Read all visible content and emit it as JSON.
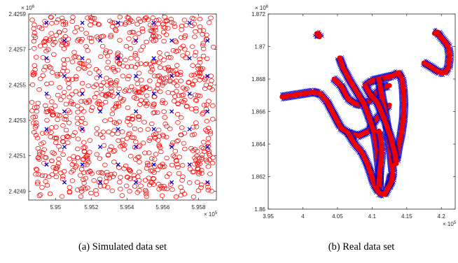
{
  "captions": {
    "a": "(a) Simulated data set",
    "b": "(b) Real data set"
  },
  "colors": {
    "circle": "#ff0000",
    "cross": "#0000cc",
    "track": "#ee0000",
    "axis": "#262626"
  },
  "chart_data": [
    {
      "type": "scatter",
      "title": "",
      "xlabel": "",
      "ylabel": "",
      "xlim": [
        594850,
        595900
      ],
      "ylim": [
        2424850,
        2425900
      ],
      "x_ticks": [
        "5.95",
        "5.952",
        "5.954",
        "5.956",
        "5.958"
      ],
      "x_tick_values": [
        595000,
        595200,
        595400,
        595600,
        595800
      ],
      "x_exponent": "× 10^5",
      "y_ticks": [
        "2.4249",
        "2.4251",
        "2.4253",
        "2.4255",
        "2.4257",
        "2.4259"
      ],
      "y_tick_values": [
        2424900,
        2425100,
        2425300,
        2425500,
        2425700,
        2425900
      ],
      "y_exponent": "× 10^6",
      "grid": false,
      "series": [
        {
          "marker": "circle",
          "color": "#ff0000",
          "count": 950,
          "distribution": "uniform over the whole axes area"
        },
        {
          "marker": "x",
          "color": "#0000cc",
          "points": [
            [
              594950,
              2425850
            ],
            [
              595150,
              2425850
            ],
            [
              595350,
              2425850
            ],
            [
              595550,
              2425850
            ],
            [
              595750,
              2425850
            ],
            [
              595050,
              2425750
            ],
            [
              595250,
              2425750
            ],
            [
              595450,
              2425750
            ],
            [
              595650,
              2425750
            ],
            [
              595850,
              2425750
            ],
            [
              594950,
              2425650
            ],
            [
              595150,
              2425650
            ],
            [
              595350,
              2425650
            ],
            [
              595550,
              2425650
            ],
            [
              595750,
              2425650
            ],
            [
              595050,
              2425550
            ],
            [
              595250,
              2425550
            ],
            [
              595450,
              2425550
            ],
            [
              595650,
              2425550
            ],
            [
              595850,
              2425550
            ],
            [
              594950,
              2425450
            ],
            [
              595150,
              2425450
            ],
            [
              595350,
              2425450
            ],
            [
              595550,
              2425450
            ],
            [
              595750,
              2425450
            ],
            [
              595050,
              2425350
            ],
            [
              595250,
              2425350
            ],
            [
              595450,
              2425350
            ],
            [
              595650,
              2425350
            ],
            [
              595850,
              2425350
            ],
            [
              594950,
              2425250
            ],
            [
              595150,
              2425250
            ],
            [
              595350,
              2425250
            ],
            [
              595550,
              2425250
            ],
            [
              595750,
              2425250
            ],
            [
              595050,
              2425150
            ],
            [
              595250,
              2425150
            ],
            [
              595450,
              2425150
            ],
            [
              595650,
              2425150
            ],
            [
              595850,
              2425150
            ],
            [
              594950,
              2425050
            ],
            [
              595150,
              2425050
            ],
            [
              595350,
              2425050
            ],
            [
              595550,
              2425050
            ],
            [
              595750,
              2425050
            ],
            [
              595050,
              2424950
            ],
            [
              595250,
              2424950
            ],
            [
              595450,
              2424950
            ],
            [
              595650,
              2424950
            ],
            [
              595850,
              2424950
            ]
          ]
        }
      ]
    },
    {
      "type": "scatter",
      "title": "",
      "xlabel": "",
      "ylabel": "",
      "xlim": [
        395000,
        422000
      ],
      "ylim": [
        1860000,
        1872000
      ],
      "x_ticks": [
        "3.95",
        "4",
        "4.05",
        "4.1",
        "4.15",
        "4.2"
      ],
      "x_tick_values": [
        395000,
        400000,
        405000,
        410000,
        415000,
        420000
      ],
      "x_exponent": "× 10^5",
      "y_ticks": [
        "1.86",
        "1.862",
        "1.864",
        "1.866",
        "1.868",
        "1.87",
        "1.872"
      ],
      "y_tick_values": [
        1860000,
        1862000,
        1864000,
        1866000,
        1868000,
        1870000,
        1872000
      ],
      "y_exponent": "× 10^6",
      "grid": false,
      "tracks": [
        [
          [
            397000,
            1866900
          ],
          [
            398500,
            1867000
          ],
          [
            400000,
            1867100
          ],
          [
            401500,
            1867200
          ],
          [
            402500,
            1867100
          ],
          [
            403500,
            1866600
          ],
          [
            404500,
            1865800
          ],
          [
            405500,
            1865000
          ],
          [
            406500,
            1864700
          ],
          [
            408000,
            1864500
          ],
          [
            409500,
            1864800
          ],
          [
            410500,
            1865500
          ],
          [
            411500,
            1866000
          ],
          [
            412500,
            1866400
          ]
        ],
        [
          [
            404500,
            1868000
          ],
          [
            405500,
            1867600
          ],
          [
            406500,
            1866800
          ],
          [
            407500,
            1866500
          ],
          [
            408500,
            1866400
          ],
          [
            409500,
            1866600
          ],
          [
            410500,
            1867100
          ],
          [
            411500,
            1867500
          ],
          [
            412500,
            1867600
          ]
        ],
        [
          [
            405300,
            1869300
          ],
          [
            405800,
            1868700
          ],
          [
            406800,
            1867900
          ],
          [
            407800,
            1867200
          ],
          [
            408800,
            1866500
          ],
          [
            409600,
            1865600
          ],
          [
            410300,
            1864700
          ],
          [
            410700,
            1863700
          ],
          [
            411000,
            1862500
          ],
          [
            411100,
            1861200
          ]
        ],
        [
          [
            406500,
            1864700
          ],
          [
            407500,
            1864000
          ],
          [
            408500,
            1863500
          ],
          [
            409300,
            1862800
          ],
          [
            409800,
            1862200
          ],
          [
            410300,
            1861500
          ],
          [
            411000,
            1861000
          ],
          [
            411800,
            1860900
          ],
          [
            412500,
            1861500
          ],
          [
            412800,
            1862200
          ]
        ],
        [
          [
            409000,
            1867600
          ],
          [
            410000,
            1867900
          ],
          [
            411000,
            1868000
          ],
          [
            412000,
            1868100
          ],
          [
            413000,
            1868200
          ],
          [
            413800,
            1868400
          ],
          [
            414300,
            1868000
          ],
          [
            414500,
            1867400
          ],
          [
            414600,
            1866500
          ],
          [
            414500,
            1865500
          ],
          [
            414200,
            1864600
          ],
          [
            413800,
            1863800
          ],
          [
            413500,
            1863000
          ]
        ],
        [
          [
            411000,
            1868000
          ],
          [
            411300,
            1867200
          ],
          [
            411600,
            1866500
          ],
          [
            412000,
            1865600
          ],
          [
            412300,
            1864600
          ],
          [
            412600,
            1863800
          ],
          [
            412800,
            1863000
          ],
          [
            413000,
            1862200
          ],
          [
            412800,
            1861700
          ],
          [
            412300,
            1861300
          ]
        ],
        [
          [
            411000,
            1861500
          ],
          [
            411100,
            1862300
          ],
          [
            411300,
            1863000
          ],
          [
            411400,
            1863600
          ],
          [
            411300,
            1864200
          ],
          [
            411000,
            1864800
          ]
        ],
        [
          [
            409000,
            1867600
          ],
          [
            409800,
            1867000
          ],
          [
            410700,
            1866600
          ],
          [
            411800,
            1865500
          ],
          [
            412700,
            1864400
          ],
          [
            413300,
            1863400
          ],
          [
            413500,
            1862800
          ]
        ],
        [
          [
            402000,
            1870800
          ],
          [
            402200,
            1870700
          ],
          [
            402400,
            1870600
          ],
          [
            402300,
            1870800
          ]
        ],
        [
          [
            417500,
            1869000
          ],
          [
            418300,
            1868800
          ],
          [
            419000,
            1868600
          ],
          [
            419800,
            1868400
          ],
          [
            420500,
            1868400
          ],
          [
            421000,
            1868700
          ],
          [
            421200,
            1869400
          ],
          [
            421000,
            1870000
          ],
          [
            420300,
            1870400
          ],
          [
            419700,
            1870700
          ],
          [
            419400,
            1870900
          ],
          [
            419000,
            1870800
          ]
        ]
      ]
    }
  ]
}
